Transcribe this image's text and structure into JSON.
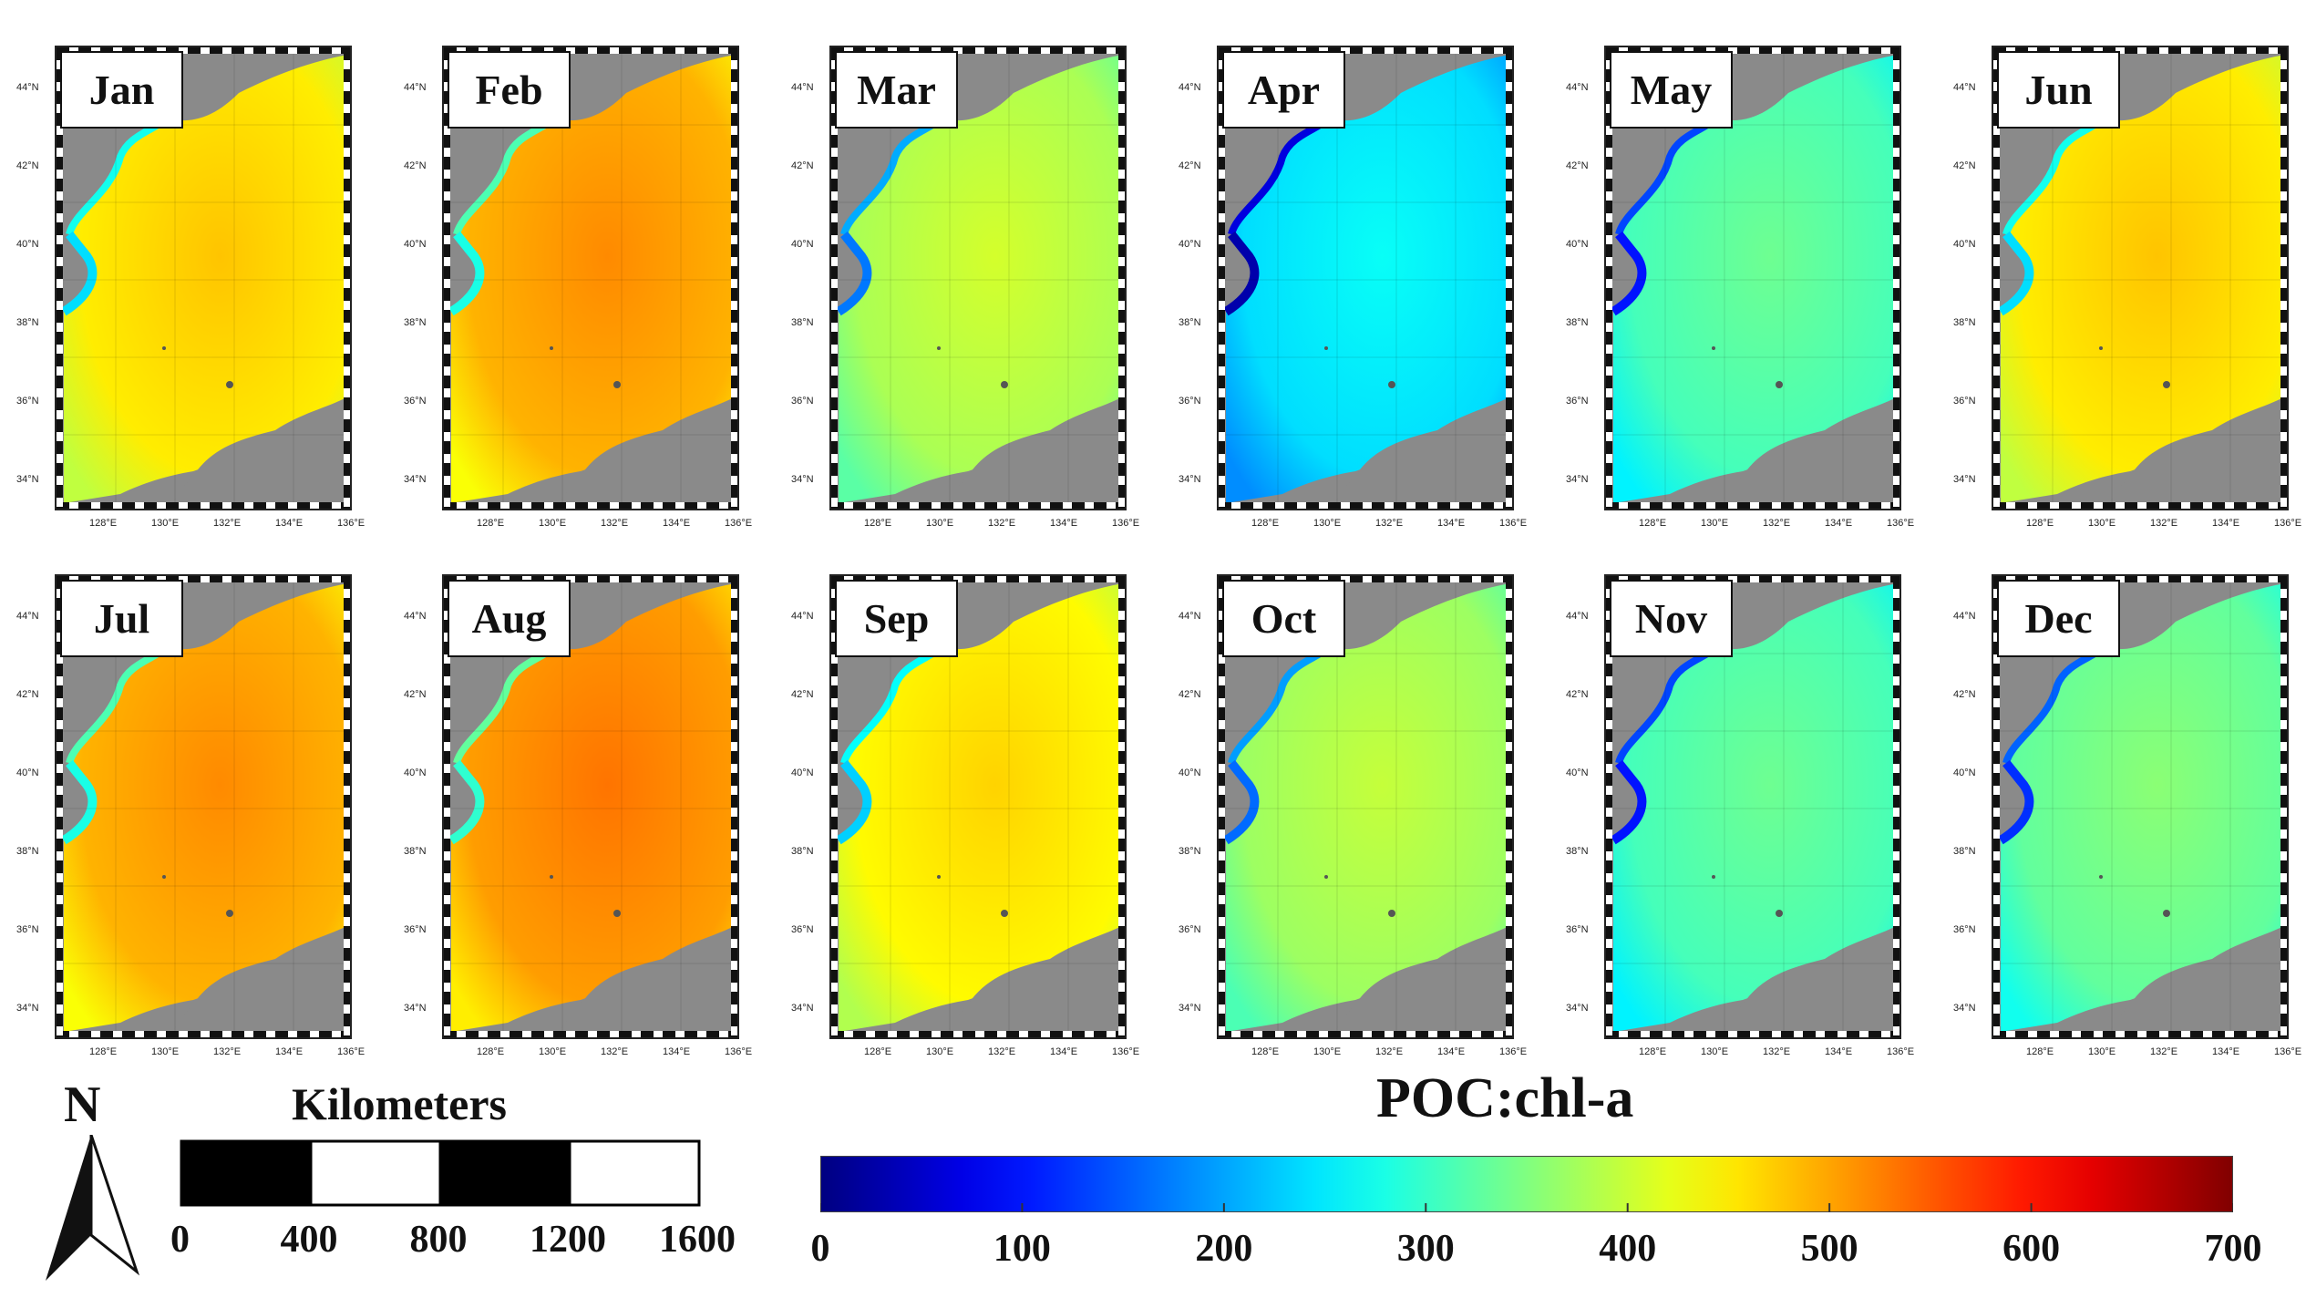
{
  "colors": {
    "land": "#8a8a8a",
    "frame": "#111111"
  },
  "panels": [
    {
      "month": "Jan",
      "mean": 450
    },
    {
      "month": "Feb",
      "mean": 490
    },
    {
      "month": "Mar",
      "mean": 380
    },
    {
      "month": "Apr",
      "mean": 240
    },
    {
      "month": "May",
      "mean": 310
    },
    {
      "month": "Jun",
      "mean": 450
    },
    {
      "month": "Jul",
      "mean": 490
    },
    {
      "month": "Aug",
      "mean": 505
    },
    {
      "month": "Sep",
      "mean": 440
    },
    {
      "month": "Oct",
      "mean": 370
    },
    {
      "month": "Nov",
      "mean": 310
    },
    {
      "month": "Dec",
      "mean": 330
    }
  ],
  "latitude_labels": [
    "44°N",
    "42°N",
    "40°N",
    "38°N",
    "36°N",
    "34°N"
  ],
  "longitude_labels": [
    "128°E",
    "130°E",
    "132°E",
    "134°E",
    "136°E"
  ],
  "north_arrow": {
    "label": "N"
  },
  "scale_bar": {
    "title": "Kilometers",
    "ticks": [
      "0",
      "400",
      "800",
      "1200",
      "1600"
    ]
  },
  "colorbar": {
    "title": "POC:chl-a",
    "min": 0,
    "max": 700,
    "ticks": [
      "0",
      "100",
      "200",
      "300",
      "400",
      "500",
      "600",
      "700"
    ],
    "colormap": "jet"
  }
}
